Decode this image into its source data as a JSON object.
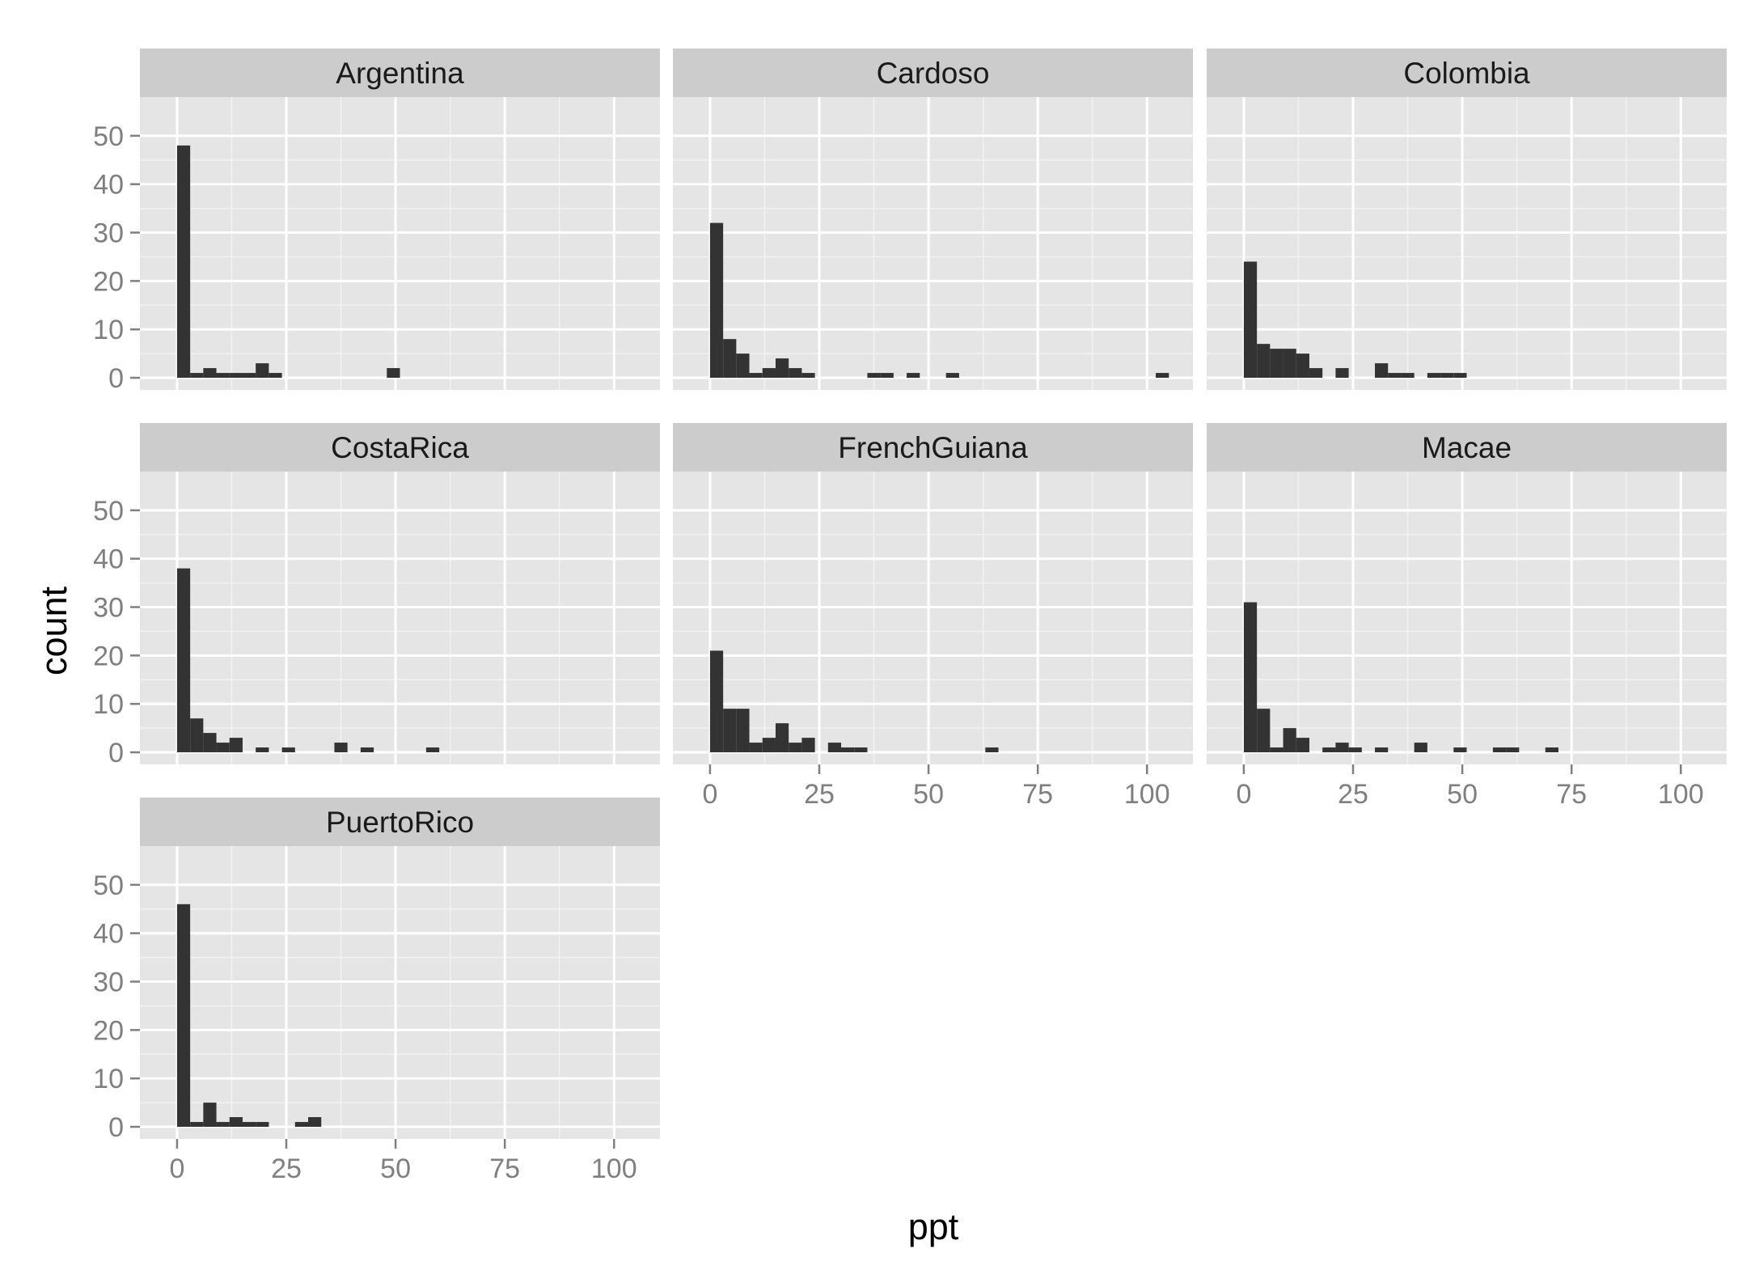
{
  "chart_data": {
    "type": "bar",
    "subtype": "faceted-histogram",
    "xlabel": "ppt",
    "ylabel": "count",
    "xlim": [
      -8.5,
      110.5
    ],
    "ylim": [
      -2.5,
      58
    ],
    "x_ticks": [
      0,
      25,
      50,
      75,
      100
    ],
    "x_tick_labels": [
      "0",
      "25",
      "50",
      "75",
      "100"
    ],
    "y_ticks": [
      0,
      10,
      20,
      30,
      40,
      50
    ],
    "y_tick_labels": [
      "0",
      "10",
      "20",
      "30",
      "40",
      "50"
    ],
    "binwidth": 3,
    "bin_starts": [
      0,
      3,
      6,
      9,
      12,
      15,
      18,
      21,
      24,
      27,
      30,
      33,
      36,
      39,
      42,
      45,
      48,
      51,
      54,
      57,
      60,
      63,
      66,
      69,
      72,
      75,
      78,
      81,
      84,
      87,
      90,
      93,
      96,
      99,
      102
    ],
    "grid": true,
    "colors": {
      "panel_background": "#e5e5e5",
      "grid_major": "#ffffff",
      "grid_minor": "#f2f2f2",
      "strip_background": "#cccccc",
      "bar_fill": "#333333",
      "tick_mark": "#7f7f7f"
    },
    "panels": [
      {
        "name": "Argentina",
        "values": [
          48,
          1,
          2,
          1,
          1,
          1,
          3,
          1,
          0,
          0,
          0,
          0,
          0,
          0,
          0,
          0,
          2,
          0,
          0,
          0,
          0,
          0,
          0,
          0,
          0,
          0,
          0,
          0,
          0,
          0,
          0,
          0,
          0,
          0,
          0
        ]
      },
      {
        "name": "Cardoso",
        "values": [
          32,
          8,
          5,
          1,
          2,
          4,
          2,
          1,
          0,
          0,
          0,
          0,
          1,
          1,
          0,
          1,
          0,
          0,
          1,
          0,
          0,
          0,
          0,
          0,
          0,
          0,
          0,
          0,
          0,
          0,
          0,
          0,
          0,
          0,
          1
        ]
      },
      {
        "name": "Colombia",
        "values": [
          24,
          7,
          6,
          6,
          5,
          2,
          0,
          2,
          0,
          0,
          3,
          1,
          1,
          0,
          1,
          1,
          1,
          0,
          0,
          0,
          0,
          0,
          0,
          0,
          0,
          0,
          0,
          0,
          0,
          0,
          0,
          0,
          0,
          0,
          0
        ]
      },
      {
        "name": "CostaRica",
        "values": [
          38,
          7,
          4,
          2,
          3,
          0,
          1,
          0,
          1,
          0,
          0,
          0,
          2,
          0,
          1,
          0,
          0,
          0,
          0,
          1,
          0,
          0,
          0,
          0,
          0,
          0,
          0,
          0,
          0,
          0,
          0,
          0,
          0,
          0,
          0
        ]
      },
      {
        "name": "FrenchGuiana",
        "values": [
          21,
          9,
          9,
          2,
          3,
          6,
          2,
          3,
          0,
          2,
          1,
          1,
          0,
          0,
          0,
          0,
          0,
          0,
          0,
          0,
          0,
          1,
          0,
          0,
          0,
          0,
          0,
          0,
          0,
          0,
          0,
          0,
          0,
          0,
          0
        ]
      },
      {
        "name": "Macae",
        "values": [
          31,
          9,
          1,
          5,
          3,
          0,
          1,
          2,
          1,
          0,
          1,
          0,
          0,
          2,
          0,
          0,
          1,
          0,
          0,
          1,
          1,
          0,
          0,
          1,
          0,
          0,
          0,
          0,
          0,
          0,
          0,
          0,
          0,
          0,
          0
        ]
      },
      {
        "name": "PuertoRico",
        "values": [
          46,
          1,
          5,
          1,
          2,
          1,
          1,
          0,
          0,
          1,
          2,
          0,
          0,
          0,
          0,
          0,
          0,
          0,
          0,
          0,
          0,
          0,
          0,
          0,
          0,
          0,
          0,
          0,
          0,
          0,
          0,
          0,
          0,
          0,
          0
        ]
      }
    ]
  }
}
